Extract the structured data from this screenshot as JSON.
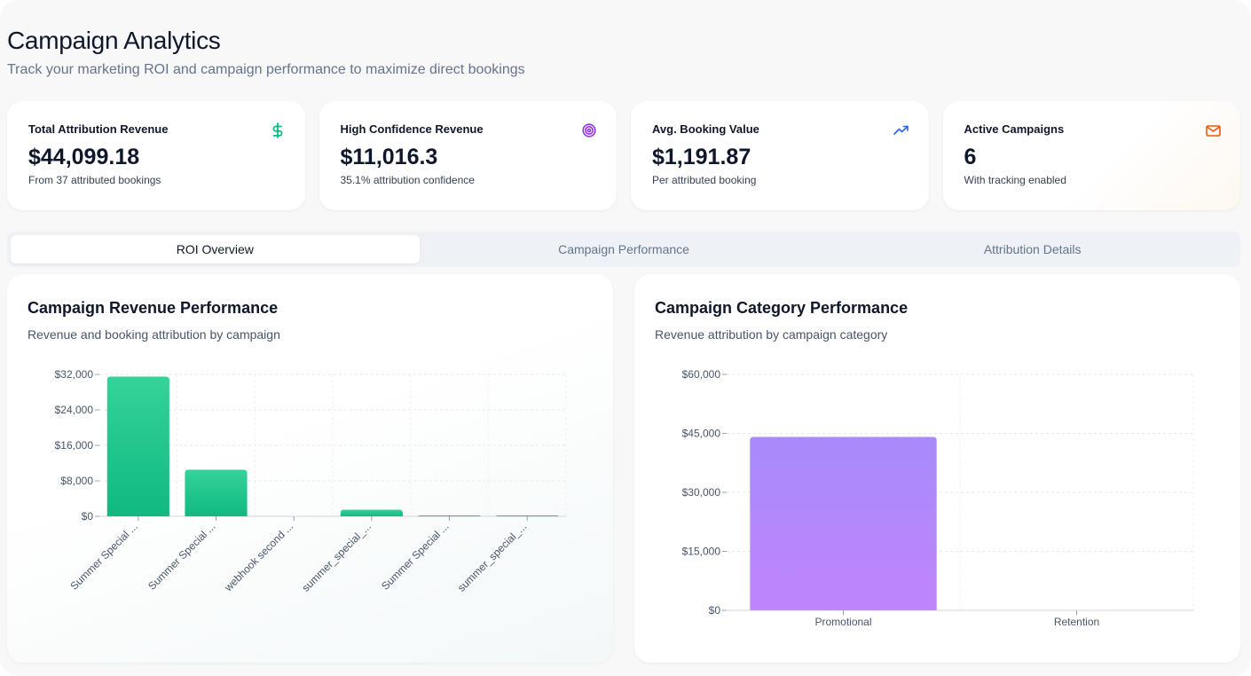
{
  "header": {
    "title": "Campaign Analytics",
    "subtitle": "Track your marketing ROI and campaign performance to maximize direct bookings"
  },
  "cards": [
    {
      "label": "Total Attribution Revenue",
      "value": "$44,099.18",
      "sub": "From 37 attributed bookings",
      "icon": "dollar-icon",
      "color": "#10b981"
    },
    {
      "label": "High Confidence Revenue",
      "value": "$11,016.3",
      "sub": "35.1% attribution confidence",
      "icon": "target-icon",
      "color": "#9333ea"
    },
    {
      "label": "Avg. Booking Value",
      "value": "$1,191.87",
      "sub": "Per attributed booking",
      "icon": "trending-up-icon",
      "color": "#2563eb"
    },
    {
      "label": "Active Campaigns",
      "value": "6",
      "sub": "With tracking enabled",
      "icon": "mail-icon",
      "color": "#ea580c"
    }
  ],
  "tabs": [
    {
      "label": "ROI Overview",
      "active": true
    },
    {
      "label": "Campaign Performance",
      "active": false
    },
    {
      "label": "Attribution Details",
      "active": false
    }
  ],
  "panels": {
    "revenue": {
      "title": "Campaign Revenue Performance",
      "subtitle": "Revenue and booking attribution by campaign"
    },
    "category": {
      "title": "Campaign Category Performance",
      "subtitle": "Revenue attribution by campaign category"
    }
  },
  "chart_data": [
    {
      "type": "bar",
      "categories": [
        "Summer Special ...",
        "Summer Special ...",
        "webhook second ...",
        "summer_special_...",
        "Summer Special ...",
        "summer_special_..."
      ],
      "values": [
        31500,
        10500,
        0,
        1500,
        200,
        200
      ],
      "yticks": [
        "$0",
        "$8,000",
        "$16,000",
        "$24,000",
        "$32,000"
      ],
      "ylim": [
        0,
        32000
      ],
      "grid": true,
      "color": "#10b981"
    },
    {
      "type": "bar",
      "categories": [
        "Promotional",
        "Retention"
      ],
      "values": [
        44099.18,
        0
      ],
      "yticks": [
        "$0",
        "$15,000",
        "$30,000",
        "$45,000",
        "$60,000"
      ],
      "ylim": [
        0,
        60000
      ],
      "grid": true,
      "color": "#a78bfa"
    }
  ]
}
